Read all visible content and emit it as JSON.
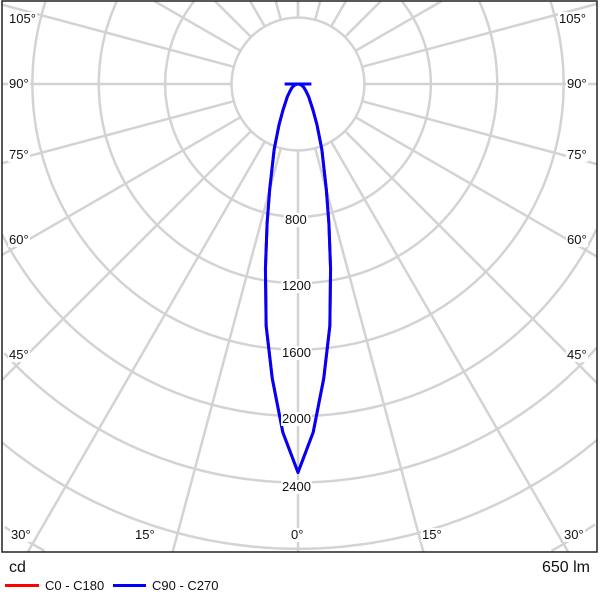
{
  "chart_data": {
    "type": "polar",
    "unit_label": "cd",
    "flux_label": "650 lm",
    "radial_ticks": [
      800,
      1200,
      1600,
      2000,
      2400
    ],
    "ring_step": 400,
    "angle_labels": {
      "left": [
        "105°",
        "90°",
        "75°",
        "60°",
        "45°",
        "30°"
      ],
      "bottom": [
        "15°",
        "0°",
        "15°"
      ],
      "right": [
        "105°",
        "90°",
        "75°",
        "60°",
        "45°",
        "30°"
      ]
    },
    "grid": true,
    "angles_deg": [
      0,
      2.5,
      5,
      7.5,
      10,
      12.5,
      15,
      20,
      25,
      30,
      40,
      50,
      60,
      70,
      80,
      85,
      90
    ],
    "series": [
      {
        "name": "C0 - C180",
        "color": "#ff0000",
        "values": [
          2340,
          2100,
          1780,
          1470,
          1130,
          860,
          660,
          420,
          270,
          180,
          100,
          60,
          40,
          25,
          10,
          2,
          80
        ]
      },
      {
        "name": "C90 - C270",
        "color": "#0000ff",
        "values": [
          2340,
          2100,
          1780,
          1470,
          1130,
          860,
          660,
          420,
          270,
          180,
          100,
          60,
          40,
          25,
          10,
          2,
          80
        ]
      }
    ],
    "legend_position": "bottom-left"
  }
}
